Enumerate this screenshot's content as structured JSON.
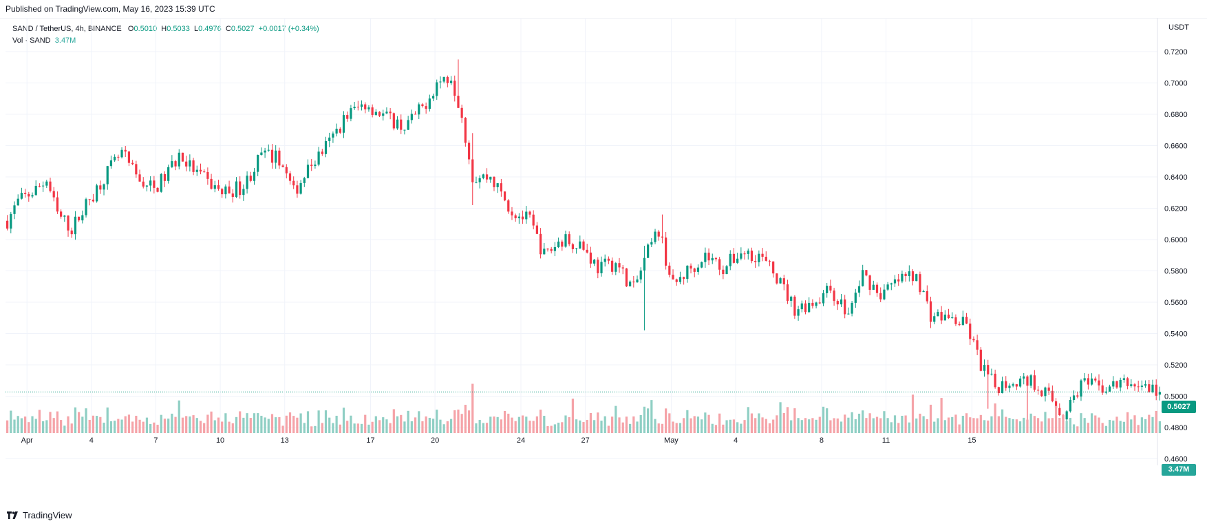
{
  "header": {
    "published": "Published on TradingView.com, May 16, 2023 15:39 UTC"
  },
  "legend": {
    "symbol": "SAND / TetherUS, 4h, BINANCE",
    "open_label": "O",
    "open": "0.5010",
    "high_label": "H",
    "high": "0.5033",
    "low_label": "L",
    "low": "0.4976",
    "close_label": "C",
    "close": "0.5027",
    "change": "+0.0017 (+0.34%)",
    "vol_label": "Vol · SAND",
    "vol_value": "3.47M"
  },
  "axis": {
    "currency": "USDT",
    "y_ticks": [
      "0.7200",
      "0.7000",
      "0.6800",
      "0.6600",
      "0.6400",
      "0.6200",
      "0.6000",
      "0.5800",
      "0.5600",
      "0.5400",
      "0.5200",
      "0.5000",
      "0.4800",
      "0.4600"
    ],
    "x_ticks": [
      "Apr",
      "4",
      "7",
      "10",
      "13",
      "17",
      "20",
      "24",
      "27",
      "May",
      "4",
      "8",
      "11",
      "15"
    ]
  },
  "last_price_tag": "0.5027",
  "volume_tag": "3.47M",
  "footer": {
    "brand": "TradingView"
  },
  "colors": {
    "up": "#089981",
    "down": "#f23645",
    "vol_up": "#8fcfc4",
    "vol_down": "#f5a3a8",
    "grid": "#f0f3fa"
  },
  "chart_data": {
    "type": "candlestick",
    "title": "SAND / TetherUS, 4h, BINANCE",
    "ylabel": "USDT",
    "ylim": [
      0.46,
      0.725
    ],
    "x_tick_labels": [
      "Apr",
      "4",
      "7",
      "10",
      "13",
      "17",
      "20",
      "24",
      "27",
      "May",
      "4",
      "8",
      "11",
      "15"
    ],
    "last_close": 0.5027,
    "waypoints_close": [
      [
        0,
        0.612
      ],
      [
        3,
        0.624
      ],
      [
        8,
        0.632
      ],
      [
        11,
        0.638
      ],
      [
        14,
        0.616
      ],
      [
        18,
        0.607
      ],
      [
        22,
        0.622
      ],
      [
        27,
        0.64
      ],
      [
        32,
        0.655
      ],
      [
        36,
        0.64
      ],
      [
        41,
        0.632
      ],
      [
        44,
        0.64
      ],
      [
        48,
        0.654
      ],
      [
        54,
        0.64
      ],
      [
        60,
        0.63
      ],
      [
        66,
        0.634
      ],
      [
        71,
        0.654
      ],
      [
        76,
        0.652
      ],
      [
        80,
        0.63
      ],
      [
        85,
        0.648
      ],
      [
        90,
        0.662
      ],
      [
        95,
        0.68
      ],
      [
        100,
        0.687
      ],
      [
        106,
        0.678
      ],
      [
        111,
        0.672
      ],
      [
        116,
        0.684
      ],
      [
        120,
        0.7
      ],
      [
        124,
        0.705
      ],
      [
        127,
        0.68
      ],
      [
        130,
        0.64
      ],
      [
        135,
        0.64
      ],
      [
        141,
        0.618
      ],
      [
        146,
        0.612
      ],
      [
        150,
        0.59
      ],
      [
        155,
        0.6
      ],
      [
        160,
        0.598
      ],
      [
        165,
        0.582
      ],
      [
        170,
        0.585
      ],
      [
        175,
        0.568
      ],
      [
        179,
        0.592
      ],
      [
        182,
        0.606
      ],
      [
        186,
        0.57
      ],
      [
        190,
        0.58
      ],
      [
        195,
        0.59
      ],
      [
        200,
        0.582
      ],
      [
        205,
        0.592
      ],
      [
        210,
        0.59
      ],
      [
        215,
        0.576
      ],
      [
        220,
        0.556
      ],
      [
        225,
        0.56
      ],
      [
        230,
        0.568
      ],
      [
        235,
        0.552
      ],
      [
        239,
        0.578
      ],
      [
        244,
        0.565
      ],
      [
        250,
        0.575
      ],
      [
        254,
        0.578
      ],
      [
        258,
        0.552
      ],
      [
        263,
        0.55
      ],
      [
        268,
        0.545
      ],
      [
        272,
        0.52
      ],
      [
        276,
        0.506
      ],
      [
        281,
        0.51
      ],
      [
        286,
        0.51
      ],
      [
        290,
        0.503
      ],
      [
        295,
        0.488
      ],
      [
        300,
        0.508
      ],
      [
        306,
        0.505
      ],
      [
        312,
        0.508
      ],
      [
        317,
        0.507
      ],
      [
        322,
        0.5027
      ]
    ],
    "notable_wicks": [
      {
        "index": 130,
        "low": 0.622,
        "high": 0.668
      },
      {
        "index": 178,
        "low": 0.542,
        "high": 0.596
      },
      {
        "index": 183,
        "high": 0.616
      },
      {
        "index": 126,
        "high": 0.715
      },
      {
        "index": 285,
        "low": 0.485
      },
      {
        "index": 274,
        "low": 0.492
      }
    ],
    "volume_series": "Vol · SAND",
    "volume_last": "3.47M"
  }
}
